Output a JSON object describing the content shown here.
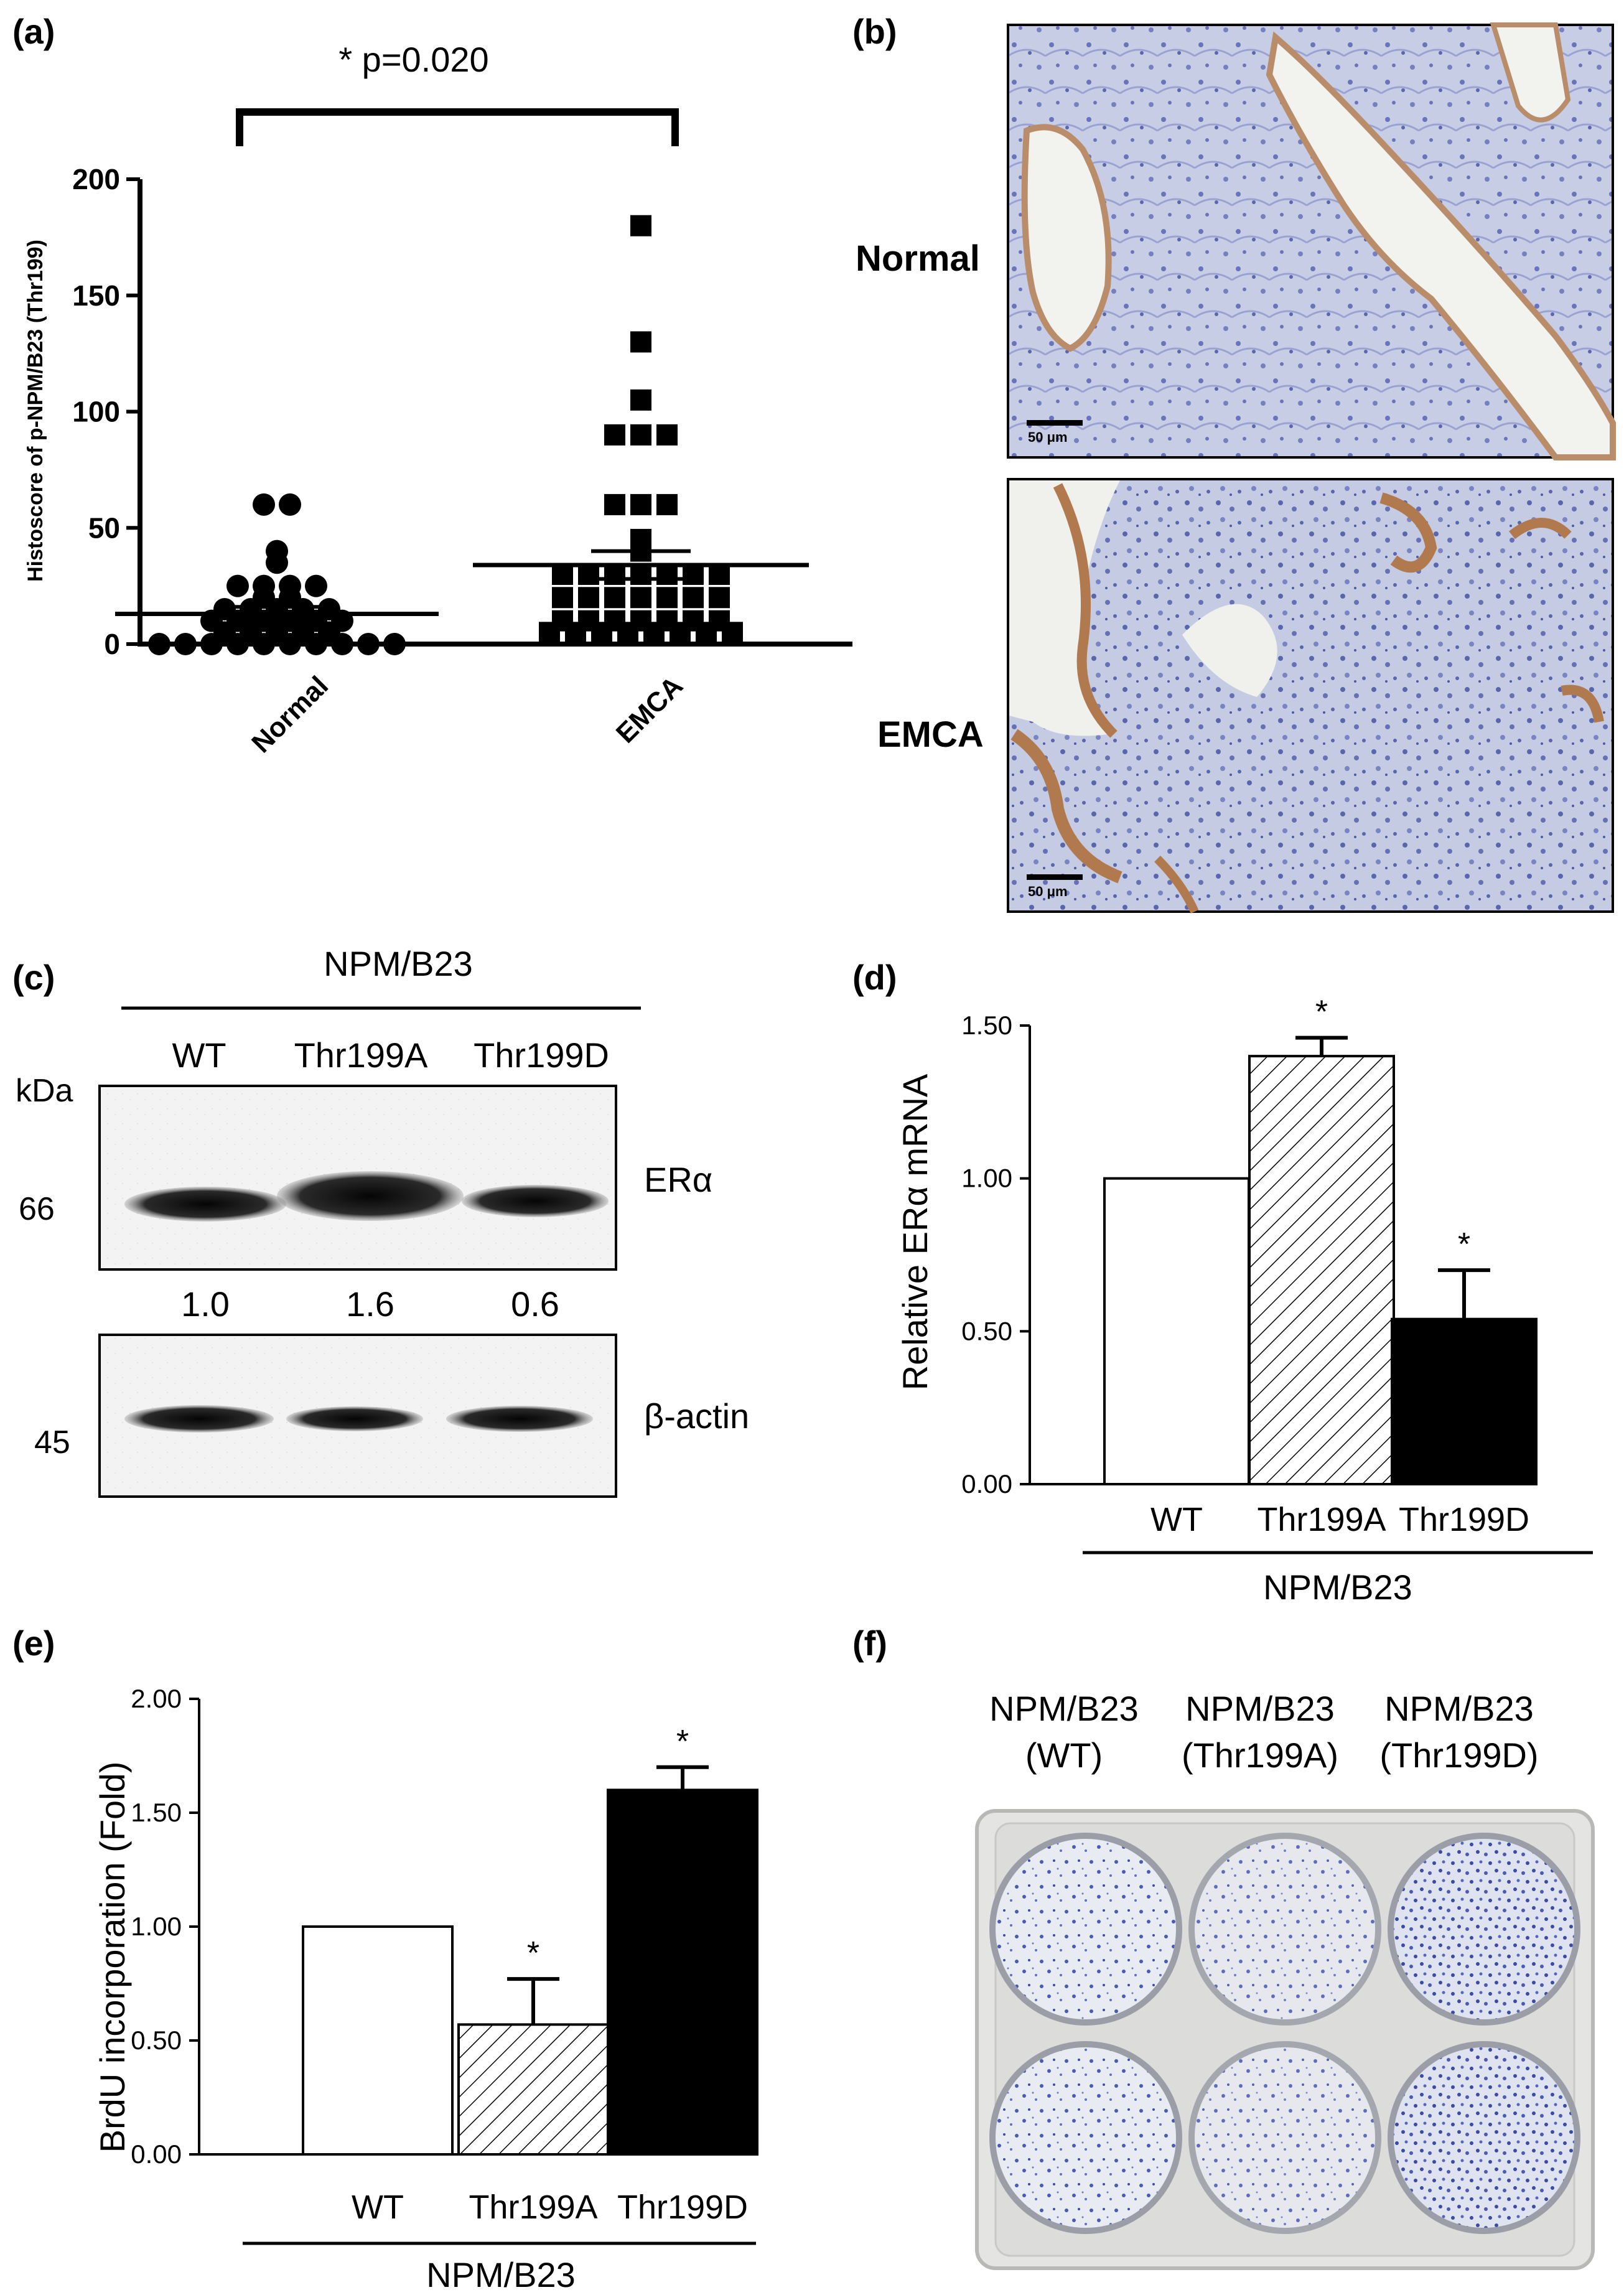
{
  "figure": {
    "panel_labels": [
      "(a)",
      "(b)",
      "(c)",
      "(d)",
      "(e)",
      "(f)"
    ]
  },
  "chart_data": [
    {
      "panel": "(a)",
      "type": "scatter",
      "title": "",
      "xlabel": "",
      "ylabel": "Histoscore of p-NPM/B23 (Thr199)",
      "ylim": [
        0,
        200
      ],
      "yticks": [
        0,
        50,
        100,
        150,
        200
      ],
      "categories": [
        "Normal",
        "EMCA"
      ],
      "significance": "* p=0.020",
      "grid": false,
      "series": [
        {
          "marker": "circle",
          "category": "Normal",
          "values": [
            60,
            60,
            40,
            35,
            25,
            25,
            25,
            25,
            20,
            20,
            15,
            15,
            15,
            15,
            15,
            10,
            10,
            10,
            10,
            10,
            10,
            5,
            5,
            5,
            5,
            5,
            0,
            0,
            0,
            0,
            0,
            0,
            0,
            0,
            0,
            0
          ],
          "mean": 13,
          "sem": 3
        },
        {
          "marker": "square",
          "category": "EMCA",
          "values": [
            180,
            130,
            105,
            90,
            90,
            90,
            60,
            60,
            60,
            45,
            40,
            30,
            30,
            30,
            30,
            30,
            30,
            30,
            20,
            20,
            20,
            20,
            20,
            20,
            20,
            10,
            10,
            10,
            10,
            10,
            10,
            10,
            5,
            5,
            5,
            5,
            5,
            5,
            5,
            5
          ],
          "mean": 34,
          "sem": 6
        }
      ]
    },
    {
      "panel": "(c)",
      "type": "table",
      "title": "NPM/B23",
      "columns": [
        "WT",
        "Thr199A",
        "Thr199D"
      ],
      "unit_label": "kDa",
      "rows": [
        {
          "marker": "66",
          "label": "ERα",
          "band_intensity": [
            1.0,
            1.6,
            0.6
          ]
        },
        {
          "marker": "45",
          "label": "β-actin"
        }
      ],
      "quantification": [
        "1.0",
        "1.6",
        "0.6"
      ]
    },
    {
      "panel": "(d)",
      "type": "bar",
      "title": "",
      "ylabel": "Relative ERα mRNA",
      "xlabel": "NPM/B23",
      "categories": [
        "WT",
        "Thr199A",
        "Thr199D"
      ],
      "values": [
        1.0,
        1.4,
        0.54
      ],
      "errors": [
        0,
        0.06,
        0.16
      ],
      "significance": [
        "",
        "*",
        "*"
      ],
      "ylim": [
        0,
        1.5
      ],
      "yticks": [
        "0.00",
        "0.50",
        "1.00",
        "1.50"
      ],
      "fills": [
        "#ffffff",
        "hatch",
        "#000000"
      ]
    },
    {
      "panel": "(e)",
      "type": "bar",
      "title": "",
      "ylabel": "BrdU incorporation (Fold)",
      "xlabel": "NPM/B23",
      "categories": [
        "WT",
        "Thr199A",
        "Thr199D"
      ],
      "values": [
        1.0,
        0.57,
        1.6
      ],
      "errors": [
        0,
        0.2,
        0.1
      ],
      "significance": [
        "",
        "*",
        "*"
      ],
      "ylim": [
        0,
        2.0
      ],
      "yticks": [
        "0.00",
        "0.50",
        "1.00",
        "1.50",
        "2.00"
      ],
      "fills": [
        "#ffffff",
        "hatch",
        "#000000"
      ]
    }
  ],
  "panel_b": {
    "labels": [
      "Normal",
      "EMCA"
    ],
    "scale_bars": [
      "50 μm",
      "50 μm"
    ]
  },
  "panel_f": {
    "column_labels": [
      {
        "line1": "NPM/B23",
        "line2": "(WT)"
      },
      {
        "line1": "NPM/B23",
        "line2": "(Thr199A)"
      },
      {
        "line1": "NPM/B23",
        "line2": "(Thr199D)"
      }
    ],
    "well_color": "#4a5bb5"
  }
}
